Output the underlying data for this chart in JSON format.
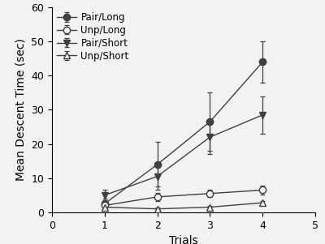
{
  "trials": [
    1,
    2,
    3,
    4
  ],
  "xlim": [
    0,
    5
  ],
  "ylim": [
    0,
    60
  ],
  "yticks": [
    0,
    10,
    20,
    30,
    40,
    50,
    60
  ],
  "xticks": [
    0,
    1,
    2,
    3,
    4,
    5
  ],
  "xlabel": "Trials",
  "ylabel": "Mean Descent Time (sec)",
  "series": [
    {
      "label": "Pair/Long",
      "y": [
        2.5,
        14.0,
        26.5,
        44.0
      ],
      "yerr": [
        1.5,
        6.5,
        8.5,
        6.0
      ],
      "marker": "o",
      "fillstyle": "full",
      "color": "#404040",
      "linestyle": "-"
    },
    {
      "label": "Unp/Long",
      "y": [
        2.0,
        4.5,
        5.5,
        6.5
      ],
      "yerr": [
        0.8,
        1.2,
        1.0,
        1.2
      ],
      "marker": "o",
      "fillstyle": "none",
      "color": "#404040",
      "linestyle": "-"
    },
    {
      "label": "Pair/Short",
      "y": [
        5.0,
        10.5,
        22.0,
        28.5
      ],
      "yerr": [
        1.5,
        4.0,
        5.0,
        5.5
      ],
      "marker": "v",
      "fillstyle": "full",
      "color": "#404040",
      "linestyle": "-"
    },
    {
      "label": "Unp/Short",
      "y": [
        1.5,
        1.0,
        1.5,
        2.8
      ],
      "yerr": [
        0.5,
        0.4,
        0.4,
        0.5
      ],
      "marker": "^",
      "fillstyle": "none",
      "color": "#404040",
      "linestyle": "-"
    }
  ],
  "legend_loc": "upper left",
  "background_color": "#f2f2f2",
  "legend_fontsize": 8.5,
  "axis_fontsize": 10,
  "tick_fontsize": 9
}
